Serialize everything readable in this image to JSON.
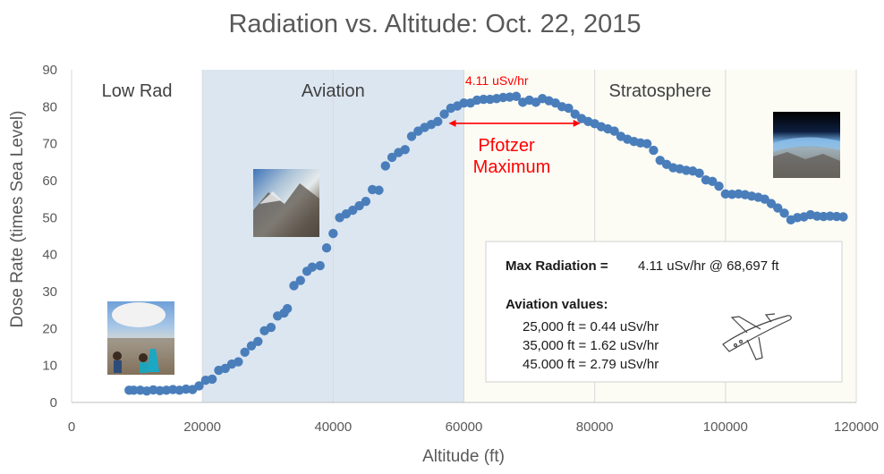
{
  "chart_data": {
    "type": "scatter",
    "title": "Radiation vs. Altitude: Oct. 22, 2015",
    "xlabel": "Altitude (ft)",
    "ylabel": "Dose Rate (times Sea Level)",
    "xlim": [
      0,
      120000
    ],
    "ylim": [
      0,
      90
    ],
    "xticks": [
      0,
      20000,
      40000,
      60000,
      80000,
      100000,
      120000
    ],
    "yticks": [
      0,
      10,
      20,
      30,
      40,
      50,
      60,
      70,
      80,
      90
    ],
    "grid": "vertical",
    "marker_color": "#4a7ebb",
    "regions": [
      {
        "label": "Low Rad",
        "x_from": 0,
        "x_to": 20000,
        "fill": "#ffffff"
      },
      {
        "label": "Aviation",
        "x_from": 20000,
        "x_to": 60000,
        "fill": "#dce6f1"
      },
      {
        "label": "Stratosphere",
        "x_from": 60000,
        "x_to": 120000,
        "fill": "#fcfcf5"
      }
    ],
    "annotations": {
      "peak_label": "4.11 uSv/hr",
      "pfotzer_line1": "Pfotzer",
      "pfotzer_line2": "Maximum",
      "arrow_from_x": 57000,
      "arrow_to_x": 78500,
      "arrow_y": 75.5,
      "color": "#ff0000"
    },
    "series": [
      {
        "x": [
          8800,
          9500,
          10500,
          11500,
          12500,
          13500,
          14500,
          15500,
          16500,
          17500,
          18500,
          19500,
          20500,
          21500,
          22500,
          23500,
          24500,
          25500,
          26500,
          27500,
          28500,
          29500,
          30500,
          31500,
          32500,
          33000,
          34000,
          35000,
          36000,
          36800,
          38000,
          39000,
          40000,
          41000,
          42000,
          43000,
          44000,
          45000,
          46000,
          47000,
          48000,
          49000,
          50000,
          51000,
          52000,
          53000,
          54000,
          55000,
          56000,
          57000,
          58000,
          59000,
          60000,
          61000,
          62000,
          63000,
          64000,
          65000,
          66000,
          67000,
          68000,
          69000,
          70000,
          71000,
          72000,
          73000,
          74000,
          75000,
          76000,
          77000,
          78000,
          79000,
          80000,
          81000,
          82000,
          83000,
          84000,
          85000,
          86000,
          87000,
          88000,
          89000,
          90000,
          91000,
          92000,
          93000,
          94000,
          95000,
          96000,
          97000,
          98000,
          99000,
          100000,
          101000,
          102000,
          103000,
          104000,
          105000,
          106000,
          107000,
          108000,
          109000,
          110000,
          111000,
          112000,
          113000,
          114000,
          115000,
          116000,
          117000,
          118000
        ],
        "y": [
          3.3,
          3.3,
          3.3,
          3.1,
          3.4,
          3.2,
          3.3,
          3.5,
          3.3,
          3.6,
          3.5,
          4.5,
          6.0,
          6.3,
          8.7,
          9.2,
          10.4,
          11.0,
          13.6,
          15.3,
          16.5,
          19.4,
          20.3,
          23.4,
          24.2,
          25.4,
          31.6,
          33.0,
          35.5,
          36.6,
          37.0,
          41.8,
          45.7,
          50.0,
          51.0,
          52.0,
          53.2,
          54.4,
          57.6,
          57.4,
          64.0,
          66.3,
          67.6,
          68.4,
          72.0,
          73.4,
          74.4,
          75.2,
          76.0,
          78.0,
          79.6,
          80.2,
          81.0,
          81.0,
          81.8,
          82.0,
          82.0,
          82.2,
          82.5,
          82.6,
          82.8,
          81.2,
          81.8,
          81.2,
          82.2,
          81.6,
          81.0,
          80.0,
          79.6,
          78.0,
          76.8,
          76.0,
          75.4,
          74.6,
          74.0,
          73.4,
          72.0,
          71.2,
          70.6,
          70.2,
          70.0,
          68.2,
          65.5,
          64.4,
          63.5,
          63.2,
          62.8,
          62.6,
          62.0,
          60.2,
          59.8,
          58.5,
          56.4,
          56.3,
          56.4,
          56.2,
          55.8,
          55.5,
          55.0,
          53.8,
          52.6,
          51.2,
          49.4,
          50.0,
          50.2,
          50.8,
          50.4,
          50.3,
          50.4,
          50.3,
          50.2
        ]
      }
    ]
  },
  "info_box": {
    "max_label": "Max Radiation =",
    "max_value": "4.11 uSv/hr @ 68,697 ft",
    "aviation_title": "Aviation values:",
    "lines": [
      "25,000 ft = 0.44 uSv/hr",
      "35,000 ft = 1.62 uSv/hr",
      "45.000 ft = 2.79 uSv/hr"
    ]
  },
  "images": [
    {
      "name": "balloon-launch-photo",
      "description": "crew with balloon launch"
    },
    {
      "name": "aerial-mountain-photo",
      "description": "aerial mountain view"
    },
    {
      "name": "stratosphere-earth-photo",
      "description": "earth curvature from stratosphere"
    },
    {
      "name": "jet-aircraft-sketch",
      "description": "business jet line drawing"
    }
  ]
}
